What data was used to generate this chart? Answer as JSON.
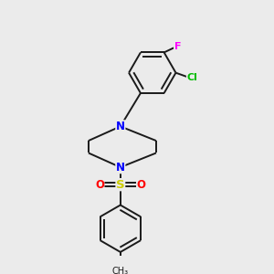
{
  "background_color": "#ebebeb",
  "bond_color": "#1a1a1a",
  "atom_colors": {
    "N": "#0000ff",
    "S": "#cccc00",
    "O": "#ff0000",
    "Cl": "#00bb00",
    "F": "#ff00ff",
    "C": "#1a1a1a"
  },
  "bg_hex": [
    0.922,
    0.922,
    0.922
  ]
}
